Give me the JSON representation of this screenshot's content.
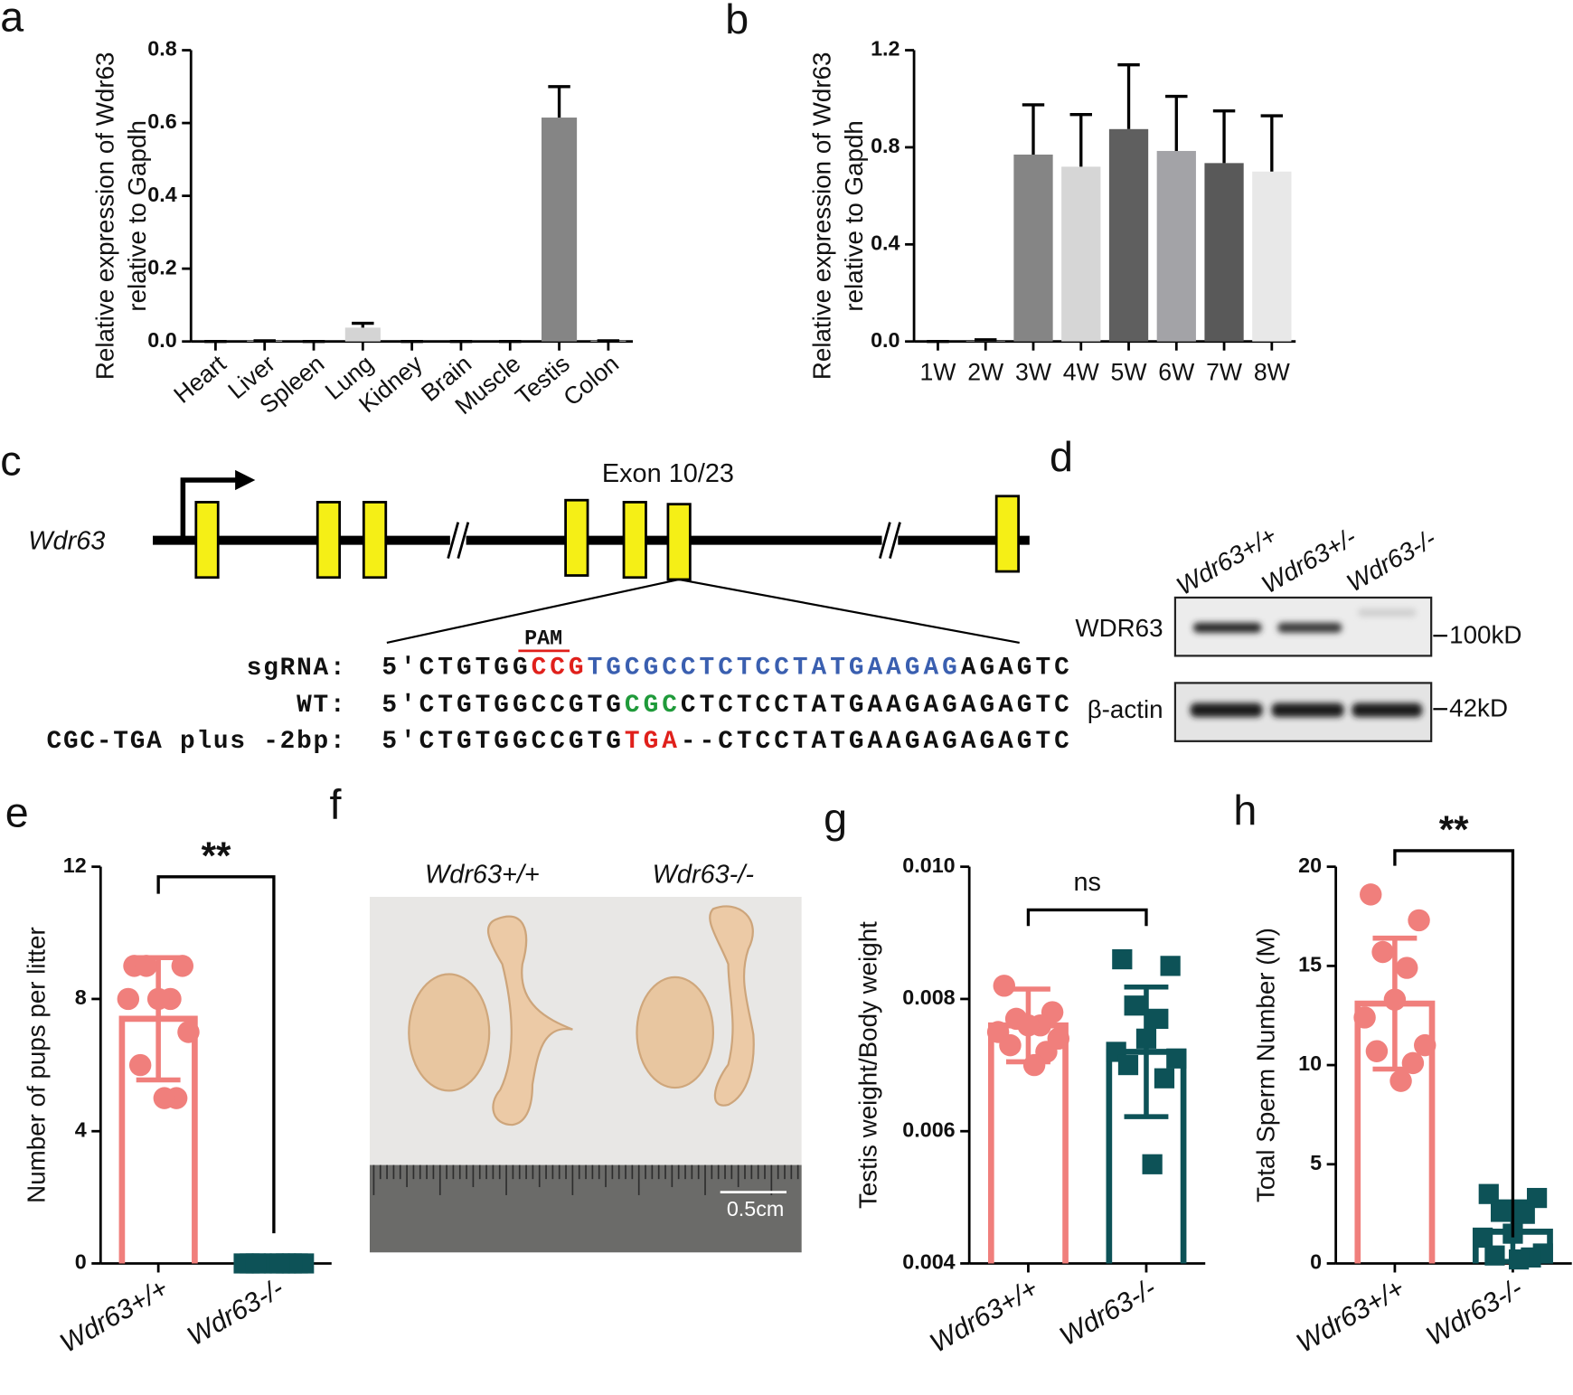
{
  "panels": {
    "labels": [
      "a",
      "b",
      "c",
      "d",
      "e",
      "f",
      "g",
      "h"
    ]
  },
  "chart_data": [
    {
      "type": "bar",
      "categories": [
        "Heart",
        "Liver",
        "Spleen",
        "Lung",
        "Kidney",
        "Brain",
        "Muscle",
        "Testis",
        "Colon"
      ],
      "values": [
        0,
        0.002,
        0,
        0.038,
        0,
        0,
        0,
        0.615,
        0.002
      ],
      "errors": [
        0,
        0,
        0,
        0.012,
        0,
        0,
        0,
        0.085,
        0
      ],
      "colors": [
        "#7f7f7f",
        "#d9d9d9",
        "#7f7f7f",
        "#d4d4d4",
        "#595959",
        "#a6a6a6",
        "#595959",
        "#858585",
        "#d9d9d9"
      ],
      "ylim": [
        0,
        0.8
      ],
      "yticks": [
        {
          "value": 0,
          "label": "0.0"
        },
        0.2,
        0.4,
        0.6,
        0.8
      ],
      "ylabel": [
        "Relative expression of Wdr63",
        "relative to Gapdh"
      ],
      "bar_style": "filled",
      "error_direction": "up"
    },
    {
      "type": "bar",
      "categories": [
        "1W",
        "2W",
        "3W",
        "4W",
        "5W",
        "6W",
        "7W",
        "8W"
      ],
      "values": [
        0,
        0.002,
        0.77,
        0.72,
        0.875,
        0.785,
        0.735,
        0.7
      ],
      "errors": [
        0,
        0.005,
        0.205,
        0.215,
        0.265,
        0.225,
        0.215,
        0.23
      ],
      "colors": [
        "#7f7f7f",
        "#d9d9d9",
        "#858585",
        "#d6d6d6",
        "#5f5f5f",
        "#a3a3a7",
        "#595959",
        "#e8e8e8"
      ],
      "ylim": [
        0,
        1.2
      ],
      "yticks": [
        {
          "value": 0,
          "label": "0.0"
        },
        0.4,
        0.8,
        1.2
      ],
      "ylabel": [
        "Relative expression of Wdr63",
        "relative to Gapdh"
      ],
      "bar_style": "filled",
      "error_direction": "up"
    },
    {
      "type": "bar",
      "categories": [
        "Wdr63+/+",
        "Wdr63-/-"
      ],
      "values": [
        7.4,
        0
      ],
      "errors": [
        1.85,
        0
      ],
      "points": [
        [
          9,
          9,
          9,
          8,
          8,
          8,
          7,
          6,
          5,
          5
        ],
        [
          0,
          0,
          0,
          0,
          0,
          0,
          0,
          0,
          0,
          0
        ]
      ],
      "colors": [
        "#f07f7c",
        "#0d5257"
      ],
      "markers": [
        "circle",
        "square"
      ],
      "ylim": [
        0,
        12
      ],
      "yticks": [
        0,
        4,
        8,
        12
      ],
      "ylabel": "Number of pups per litter",
      "annotation": "**",
      "bar_style": "outline",
      "error_direction": "both"
    },
    {
      "type": "bar",
      "categories": [
        "Wdr63+/+",
        "Wdr63-/-"
      ],
      "values": [
        0.0076,
        0.0072
      ],
      "errors": [
        0.00055,
        0.00098
      ],
      "points": [
        [
          0.0082,
          0.0078,
          0.0077,
          0.0076,
          0.0076,
          0.0075,
          0.0074,
          0.0073,
          0.0072,
          0.007
        ],
        [
          0.0086,
          0.0085,
          0.0079,
          0.0077,
          0.0074,
          0.0072,
          0.0071,
          0.007,
          0.0068,
          0.0055
        ]
      ],
      "colors": [
        "#f07f7c",
        "#0d5257"
      ],
      "markers": [
        "circle",
        "square"
      ],
      "ylim": [
        0.004,
        0.01
      ],
      "yticks": [
        0.004,
        0.006,
        0.008,
        {
          "value": 0.01,
          "label": "0.010"
        }
      ],
      "ylabel": "Testis weight/Body weight",
      "annotation": "ns",
      "bar_style": "outline",
      "error_direction": "both"
    },
    {
      "type": "bar",
      "categories": [
        "Wdr63+/+",
        "Wdr63-/-"
      ],
      "values": [
        13.1,
        1.6
      ],
      "errors": [
        3.3,
        1.5
      ],
      "points": [
        [
          18.6,
          17.3,
          15.7,
          14.9,
          13.3,
          12.4,
          11,
          10.7,
          10.1,
          9.2
        ],
        [
          3.5,
          3.3,
          2.6,
          2.5,
          1.5,
          1.3,
          0.5,
          0.4,
          0.3,
          0.2
        ]
      ],
      "colors": [
        "#f07f7c",
        "#0d5257"
      ],
      "markers": [
        "circle",
        "square"
      ],
      "ylim": [
        0,
        20
      ],
      "yticks": [
        0,
        5,
        10,
        15,
        20
      ],
      "ylabel": "Total Sperm Number (M)",
      "annotation": "**",
      "bar_style": "outline",
      "error_direction": "both"
    }
  ],
  "gene_diagram": {
    "gene": "Wdr63",
    "exon_label": "Exon 10/23",
    "pam_label": "PAM",
    "rows": [
      {
        "label": "sgRNA:",
        "segments": [
          {
            "text": "5'CTGTGG",
            "color": "#111111"
          },
          {
            "text": "CCG",
            "color": "#e0201b"
          },
          {
            "text": "TGCGCCTCTCCTATGAAGAG",
            "color": "#3a5fb0"
          },
          {
            "text": "AGAGTC",
            "color": "#111111"
          }
        ]
      },
      {
        "label": "WT:",
        "segments": [
          {
            "text": "5'CTGTGGCCGTG",
            "color": "#111111"
          },
          {
            "text": "CGC",
            "color": "#1f9a3a"
          },
          {
            "text": "CTCTCCTATGAAGAGAGAGTC",
            "color": "#111111"
          }
        ]
      },
      {
        "label": "CGC-TGA plus -2bp:",
        "segments": [
          {
            "text": "5'CTGTGGCCGTG",
            "color": "#111111"
          },
          {
            "text": "TGA",
            "color": "#e0201b"
          },
          {
            "text": "--CTCCTATGAAGAGAGAGTC",
            "color": "#111111"
          }
        ]
      }
    ]
  },
  "western_blot": {
    "lanes": [
      "Wdr63+/+",
      "Wdr63+/-",
      "Wdr63-/-"
    ],
    "proteins": [
      "WDR63",
      "β-actin"
    ],
    "markers": [
      "100kD",
      "42kD"
    ]
  },
  "photo": {
    "labels": [
      "Wdr63+/+",
      "Wdr63-/-"
    ],
    "scale_bar": "0.5cm"
  }
}
